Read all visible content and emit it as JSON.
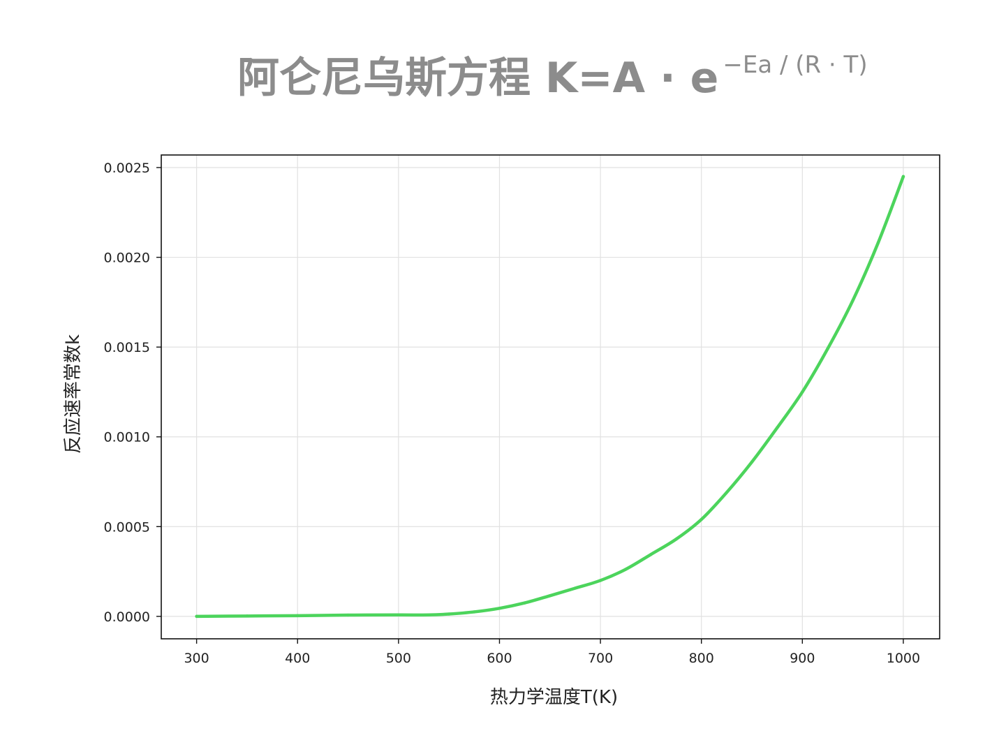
{
  "title": {
    "main": "阿仑尼乌斯方程 K=A · e",
    "superscript": "−Ea / (R · T)"
  },
  "chart_data": {
    "type": "line",
    "title": "阿仑尼乌斯方程 K=A · e^(−Ea/(R·T))",
    "xlabel": "热力学温度T(K)",
    "ylabel": "反应速率常数k",
    "xlim": [
      265,
      1036
    ],
    "ylim": [
      -0.000125,
      0.00257
    ],
    "xticks": [
      300,
      400,
      500,
      600,
      700,
      800,
      900,
      1000
    ],
    "yticks": [
      0.0,
      0.0005,
      0.001,
      0.0015,
      0.002,
      0.0025
    ],
    "ytick_labels": [
      "0.0000",
      "0.0005",
      "0.0010",
      "0.0015",
      "0.0020",
      "0.0025"
    ],
    "grid": true,
    "series": [
      {
        "color": "#4cd45c",
        "x": [
          300,
          350,
          400,
          450,
          500,
          530,
          550,
          575,
          600,
          625,
          650,
          675,
          700,
          725,
          750,
          775,
          800,
          825,
          850,
          875,
          900,
          925,
          950,
          975,
          1000
        ],
        "y": [
          0.0,
          2e-06,
          4e-06,
          7e-06,
          8e-06,
          8e-06,
          1.3e-05,
          2.5e-05,
          4.5e-05,
          7.5e-05,
          0.000115,
          0.000157,
          0.0002,
          0.000262,
          0.000345,
          0.00043,
          0.00054,
          0.00069,
          0.00086,
          0.00105,
          0.00125,
          0.00149,
          0.00176,
          0.00208,
          0.00245
        ]
      }
    ]
  }
}
